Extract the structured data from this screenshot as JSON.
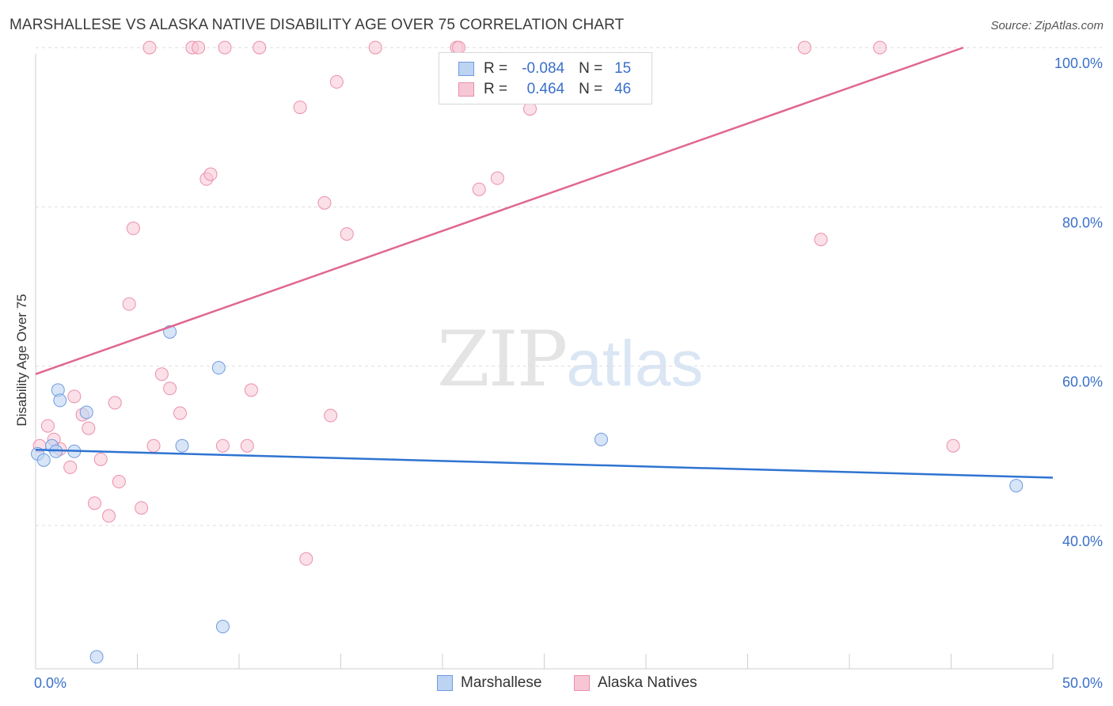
{
  "header": {
    "title": "MARSHALLESE VS ALASKA NATIVE DISABILITY AGE OVER 75 CORRELATION CHART",
    "source": "Source: ZipAtlas.com"
  },
  "watermark": {
    "zip": "ZIP",
    "atlas": "atlas"
  },
  "legend": {
    "rows": [
      {
        "r_label": "R =",
        "r_value": "-0.084",
        "n_label": "N =",
        "n_value": "15"
      },
      {
        "r_label": "R =",
        "r_value": "0.464",
        "n_label": "N =",
        "n_value": "46"
      }
    ]
  },
  "bottom_legend": [
    "Marshallese",
    "Alaska Natives"
  ],
  "chart_data": {
    "type": "scatter",
    "title": "MARSHALLESE VS ALASKA NATIVE DISABILITY AGE OVER 75 CORRELATION CHART",
    "xlabel": "",
    "ylabel": "Disability Age Over 75",
    "xlim": [
      0,
      50
    ],
    "ylim": [
      22,
      102
    ],
    "x_tick_labels": [
      "0.0%",
      "50.0%"
    ],
    "y_ticks": [
      40,
      60,
      80,
      100
    ],
    "y_tick_labels": [
      "40.0%",
      "60.0%",
      "80.0%",
      "100.0%"
    ],
    "grid": true,
    "colors": {
      "marshallese_fill": "#bcd3f2",
      "marshallese_stroke": "#6f9be0",
      "marshallese_line": "#2e74d1",
      "alaska_fill": "#f7c6d5",
      "alaska_stroke": "#eb8fac",
      "alaska_line": "#e06790"
    },
    "series": [
      {
        "name": "Marshallese",
        "r": -0.084,
        "n": 15,
        "points": [
          [
            0.1,
            49.0
          ],
          [
            0.4,
            48.2
          ],
          [
            0.8,
            50.0
          ],
          [
            1.0,
            49.3
          ],
          [
            1.1,
            57.0
          ],
          [
            1.2,
            55.7
          ],
          [
            1.9,
            49.3
          ],
          [
            2.5,
            54.2
          ],
          [
            3.0,
            23.5
          ],
          [
            6.6,
            64.3
          ],
          [
            7.2,
            50.0
          ],
          [
            9.0,
            59.8
          ],
          [
            9.2,
            27.3
          ],
          [
            27.8,
            50.8
          ],
          [
            48.2,
            45.0
          ]
        ],
        "trend": [
          [
            0,
            49.5
          ],
          [
            50,
            46.0
          ]
        ]
      },
      {
        "name": "Alaska Natives",
        "r": 0.464,
        "n": 46,
        "points": [
          [
            0.2,
            50.0
          ],
          [
            0.6,
            52.5
          ],
          [
            0.9,
            50.8
          ],
          [
            1.2,
            49.6
          ],
          [
            1.7,
            47.3
          ],
          [
            1.9,
            56.2
          ],
          [
            2.3,
            53.9
          ],
          [
            2.6,
            52.2
          ],
          [
            2.9,
            42.8
          ],
          [
            3.2,
            48.3
          ],
          [
            3.6,
            41.2
          ],
          [
            3.9,
            55.4
          ],
          [
            4.1,
            45.5
          ],
          [
            4.6,
            67.8
          ],
          [
            4.8,
            77.3
          ],
          [
            5.2,
            42.2
          ],
          [
            5.6,
            100.0
          ],
          [
            5.8,
            50.0
          ],
          [
            6.2,
            59.0
          ],
          [
            6.6,
            57.2
          ],
          [
            7.1,
            54.1
          ],
          [
            7.7,
            100.0
          ],
          [
            8.0,
            100.0
          ],
          [
            8.4,
            83.5
          ],
          [
            8.6,
            84.1
          ],
          [
            9.2,
            50.0
          ],
          [
            9.3,
            100.0
          ],
          [
            10.4,
            50.0
          ],
          [
            10.6,
            57.0
          ],
          [
            11.0,
            100.0
          ],
          [
            13.0,
            92.5
          ],
          [
            13.3,
            35.8
          ],
          [
            14.2,
            80.5
          ],
          [
            14.5,
            53.8
          ],
          [
            14.8,
            95.7
          ],
          [
            15.3,
            76.6
          ],
          [
            16.7,
            100.0
          ],
          [
            20.7,
            100.0
          ],
          [
            21.8,
            82.2
          ],
          [
            22.7,
            83.6
          ],
          [
            24.3,
            92.3
          ],
          [
            37.8,
            100.0
          ],
          [
            38.6,
            75.9
          ],
          [
            41.5,
            100.0
          ],
          [
            45.1,
            50.0
          ],
          [
            20.8,
            100.0
          ]
        ],
        "trend": [
          [
            0,
            59.0
          ],
          [
            45.6,
            100.0
          ]
        ]
      }
    ]
  }
}
